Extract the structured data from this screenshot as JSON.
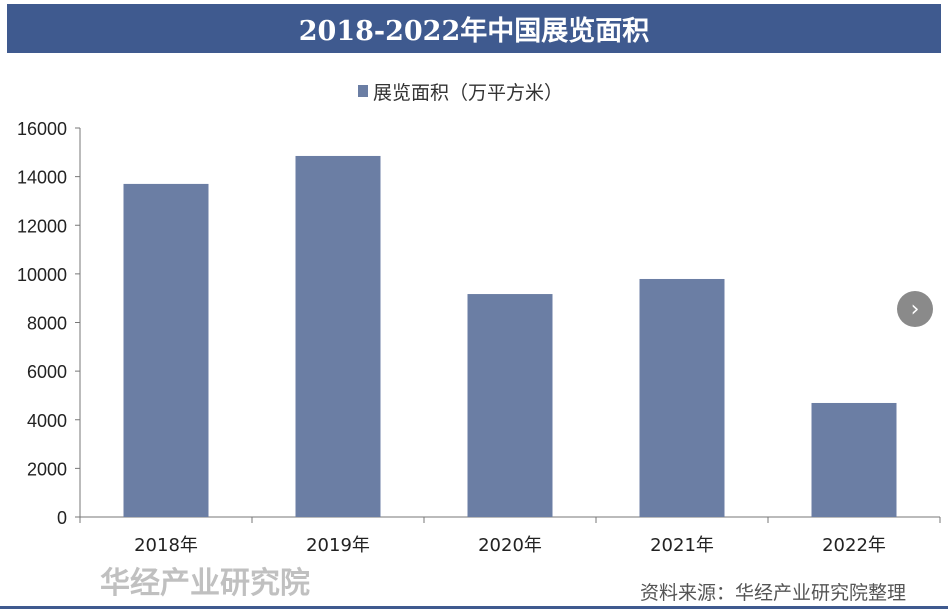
{
  "chart_data": {
    "type": "bar",
    "title": "2018-2022年中国展览面积",
    "categories": [
      "2018年",
      "2019年",
      "2020年",
      "2021年",
      "2022年"
    ],
    "series": [
      {
        "name": "展览面积（万平方米）",
        "values": [
          13700,
          14850,
          9170,
          9790,
          4690
        ]
      }
    ],
    "ylim": [
      0,
      16000
    ],
    "yticks": [
      0,
      2000,
      4000,
      6000,
      8000,
      10000,
      12000,
      14000,
      16000
    ],
    "legend_position": "top",
    "grid": false,
    "colors": {
      "bar": "#6b7ea4",
      "title_bg": "#3f5a8f"
    }
  },
  "source": "资料来源：华经产业研究院整理",
  "watermark": "华经产业研究院",
  "next_icon": "chevron-right-icon"
}
